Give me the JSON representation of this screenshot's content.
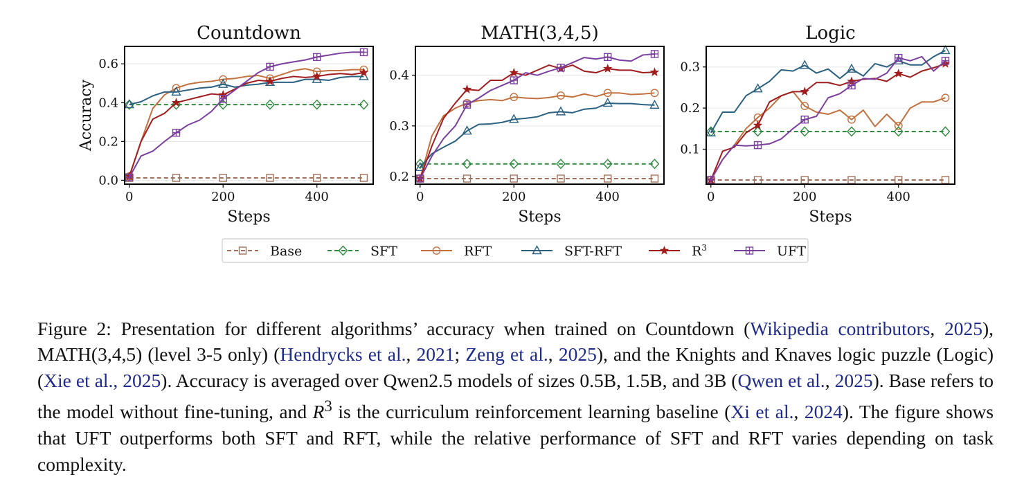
{
  "chart_data": [
    {
      "type": "line",
      "title": "Countdown",
      "xlabel": "Steps",
      "ylabel": "Accuracy",
      "xlim": [
        -10,
        520
      ],
      "ylim": [
        -0.02,
        0.69
      ],
      "xticks": [
        0,
        200,
        400
      ],
      "yticks": [
        0.0,
        0.2,
        0.4,
        0.6
      ],
      "ytick_labels": [
        "0.0",
        "0.2",
        "0.4",
        "0.6"
      ],
      "grid": "horizontal",
      "series": [
        {
          "name": "Base",
          "x": [
            0,
            100,
            200,
            300,
            400,
            500
          ],
          "y": [
            0.012,
            0.012,
            0.012,
            0.012,
            0.012,
            0.012
          ],
          "markers": [
            0,
            100,
            200,
            300,
            400,
            500
          ]
        },
        {
          "name": "SFT",
          "x": [
            0,
            100,
            200,
            300,
            400,
            500
          ],
          "y": [
            0.39,
            0.39,
            0.39,
            0.39,
            0.39,
            0.39
          ],
          "markers": [
            0,
            100,
            200,
            300,
            400,
            500
          ]
        },
        {
          "name": "RFT",
          "x": [
            0,
            25,
            50,
            75,
            100,
            125,
            150,
            175,
            200,
            225,
            250,
            275,
            300,
            325,
            350,
            375,
            400,
            425,
            450,
            475,
            500
          ],
          "y": [
            0.02,
            0.2,
            0.37,
            0.44,
            0.475,
            0.495,
            0.505,
            0.51,
            0.52,
            0.525,
            0.535,
            0.54,
            0.525,
            0.545,
            0.565,
            0.575,
            0.56,
            0.565,
            0.565,
            0.57,
            0.57
          ],
          "markers": [
            0,
            100,
            200,
            300,
            400,
            500
          ]
        },
        {
          "name": "SFT-RFT",
          "x": [
            0,
            25,
            50,
            75,
            100,
            125,
            150,
            175,
            200,
            225,
            250,
            275,
            300,
            325,
            350,
            375,
            400,
            425,
            450,
            475,
            500
          ],
          "y": [
            0.39,
            0.405,
            0.435,
            0.455,
            0.455,
            0.465,
            0.475,
            0.48,
            0.495,
            0.48,
            0.49,
            0.495,
            0.505,
            0.505,
            0.505,
            0.52,
            0.52,
            0.515,
            0.53,
            0.535,
            0.535
          ],
          "markers": [
            0,
            100,
            200,
            300,
            400,
            500
          ]
        },
        {
          "name": "R³",
          "x": [
            0,
            25,
            50,
            75,
            100,
            125,
            150,
            175,
            200,
            225,
            250,
            275,
            300,
            325,
            350,
            375,
            400,
            425,
            450,
            475,
            500
          ],
          "y": [
            0.02,
            0.2,
            0.315,
            0.345,
            0.4,
            0.415,
            0.43,
            0.445,
            0.44,
            0.47,
            0.5,
            0.515,
            0.51,
            0.525,
            0.535,
            0.53,
            0.535,
            0.545,
            0.55,
            0.545,
            0.555
          ],
          "markers": [
            0,
            100,
            200,
            300,
            400,
            500
          ]
        },
        {
          "name": "UFT",
          "x": [
            0,
            25,
            50,
            75,
            100,
            125,
            150,
            175,
            200,
            225,
            250,
            275,
            300,
            325,
            350,
            375,
            400,
            425,
            450,
            475,
            500
          ],
          "y": [
            0.015,
            0.125,
            0.15,
            0.2,
            0.245,
            0.285,
            0.31,
            0.355,
            0.42,
            0.465,
            0.51,
            0.555,
            0.585,
            0.6,
            0.61,
            0.62,
            0.635,
            0.645,
            0.655,
            0.66,
            0.66
          ],
          "markers": [
            0,
            100,
            200,
            300,
            400,
            500
          ]
        }
      ]
    },
    {
      "type": "line",
      "title": "MATH(3,4,5)",
      "xlabel": "Steps",
      "ylabel": "",
      "xlim": [
        -10,
        520
      ],
      "ylim": [
        0.185,
        0.457
      ],
      "xticks": [
        0,
        200,
        400
      ],
      "yticks": [
        0.2,
        0.3,
        0.4
      ],
      "ytick_labels": [
        "0.2",
        "0.3",
        "0.4"
      ],
      "grid": "horizontal",
      "series": [
        {
          "name": "Base",
          "x": [
            0,
            100,
            200,
            300,
            400,
            500
          ],
          "y": [
            0.196,
            0.196,
            0.196,
            0.196,
            0.196,
            0.196
          ],
          "markers": [
            0,
            100,
            200,
            300,
            400,
            500
          ]
        },
        {
          "name": "SFT",
          "x": [
            0,
            100,
            200,
            300,
            400,
            500
          ],
          "y": [
            0.225,
            0.225,
            0.225,
            0.225,
            0.225,
            0.225
          ],
          "markers": [
            0,
            100,
            200,
            300,
            400,
            500
          ]
        },
        {
          "name": "RFT",
          "x": [
            0,
            25,
            50,
            75,
            100,
            125,
            150,
            175,
            200,
            225,
            250,
            275,
            300,
            325,
            350,
            375,
            400,
            425,
            450,
            475,
            500
          ],
          "y": [
            0.196,
            0.28,
            0.32,
            0.335,
            0.345,
            0.35,
            0.352,
            0.35,
            0.357,
            0.355,
            0.354,
            0.356,
            0.36,
            0.357,
            0.363,
            0.358,
            0.365,
            0.365,
            0.362,
            0.363,
            0.365
          ],
          "markers": [
            0,
            100,
            200,
            300,
            400,
            500
          ]
        },
        {
          "name": "SFT-RFT",
          "x": [
            0,
            25,
            50,
            75,
            100,
            125,
            150,
            175,
            200,
            225,
            250,
            275,
            300,
            325,
            350,
            375,
            400,
            425,
            450,
            475,
            500
          ],
          "y": [
            0.218,
            0.245,
            0.258,
            0.27,
            0.29,
            0.303,
            0.304,
            0.307,
            0.313,
            0.315,
            0.318,
            0.326,
            0.328,
            0.326,
            0.333,
            0.335,
            0.345,
            0.344,
            0.344,
            0.342,
            0.341
          ],
          "markers": [
            0,
            100,
            200,
            300,
            400,
            500
          ]
        },
        {
          "name": "R³",
          "x": [
            0,
            25,
            50,
            75,
            100,
            125,
            150,
            175,
            200,
            225,
            250,
            275,
            300,
            325,
            350,
            375,
            400,
            425,
            450,
            475,
            500
          ],
          "y": [
            0.196,
            0.26,
            0.315,
            0.345,
            0.372,
            0.37,
            0.39,
            0.39,
            0.405,
            0.4,
            0.41,
            0.42,
            0.413,
            0.42,
            0.408,
            0.405,
            0.413,
            0.41,
            0.41,
            0.405,
            0.406
          ],
          "markers": [
            0,
            100,
            200,
            300,
            400,
            500
          ]
        },
        {
          "name": "UFT",
          "x": [
            0,
            25,
            50,
            75,
            100,
            125,
            150,
            175,
            200,
            225,
            250,
            275,
            300,
            325,
            350,
            375,
            400,
            425,
            450,
            475,
            500
          ],
          "y": [
            0.196,
            0.24,
            0.275,
            0.3,
            0.342,
            0.355,
            0.37,
            0.38,
            0.39,
            0.405,
            0.4,
            0.408,
            0.415,
            0.425,
            0.435,
            0.432,
            0.436,
            0.43,
            0.428,
            0.44,
            0.442
          ],
          "markers": [
            0,
            100,
            200,
            300,
            400,
            500
          ]
        }
      ]
    },
    {
      "type": "line",
      "title": "Logic",
      "xlabel": "Steps",
      "ylabel": "",
      "xlim": [
        -10,
        520
      ],
      "ylim": [
        0.015,
        0.35
      ],
      "xticks": [
        0,
        200,
        400
      ],
      "yticks": [
        0.1,
        0.2,
        0.3
      ],
      "ytick_labels": [
        "0.1",
        "0.2",
        "0.3"
      ],
      "grid": "horizontal",
      "series": [
        {
          "name": "Base",
          "x": [
            0,
            100,
            200,
            300,
            400,
            500
          ],
          "y": [
            0.025,
            0.025,
            0.025,
            0.025,
            0.025,
            0.025
          ],
          "markers": [
            0,
            100,
            200,
            300,
            400,
            500
          ]
        },
        {
          "name": "SFT",
          "x": [
            0,
            100,
            200,
            300,
            400,
            500
          ],
          "y": [
            0.143,
            0.143,
            0.143,
            0.143,
            0.143,
            0.143
          ],
          "markers": [
            0,
            100,
            200,
            300,
            400,
            500
          ]
        },
        {
          "name": "RFT",
          "x": [
            0,
            25,
            50,
            75,
            100,
            125,
            150,
            175,
            200,
            225,
            250,
            275,
            300,
            325,
            350,
            375,
            400,
            425,
            450,
            475,
            500
          ],
          "y": [
            0.025,
            0.075,
            0.11,
            0.15,
            0.177,
            0.2,
            0.23,
            0.24,
            0.205,
            0.19,
            0.185,
            0.195,
            0.172,
            0.195,
            0.155,
            0.185,
            0.157,
            0.2,
            0.215,
            0.215,
            0.225
          ],
          "markers": [
            0,
            100,
            200,
            300,
            400,
            500
          ]
        },
        {
          "name": "SFT-RFT",
          "x": [
            0,
            25,
            50,
            75,
            100,
            125,
            150,
            175,
            200,
            225,
            250,
            275,
            300,
            325,
            350,
            375,
            400,
            425,
            450,
            475,
            500
          ],
          "y": [
            0.14,
            0.19,
            0.19,
            0.23,
            0.247,
            0.265,
            0.293,
            0.29,
            0.304,
            0.285,
            0.295,
            0.272,
            0.295,
            0.278,
            0.308,
            0.3,
            0.315,
            0.305,
            0.305,
            0.325,
            0.34
          ],
          "markers": [
            0,
            100,
            200,
            300,
            400,
            500
          ]
        },
        {
          "name": "R³",
          "x": [
            0,
            25,
            50,
            75,
            100,
            125,
            150,
            175,
            200,
            225,
            250,
            275,
            300,
            325,
            350,
            375,
            400,
            425,
            450,
            475,
            500
          ],
          "y": [
            0.025,
            0.095,
            0.105,
            0.14,
            0.158,
            0.215,
            0.23,
            0.24,
            0.24,
            0.262,
            0.262,
            0.255,
            0.265,
            0.27,
            0.272,
            0.265,
            0.284,
            0.275,
            0.29,
            0.298,
            0.308
          ],
          "markers": [
            0,
            100,
            200,
            300,
            400,
            500
          ]
        },
        {
          "name": "UFT",
          "x": [
            0,
            25,
            50,
            75,
            100,
            125,
            150,
            175,
            200,
            225,
            250,
            275,
            300,
            325,
            350,
            375,
            400,
            425,
            450,
            475,
            500
          ],
          "y": [
            0.025,
            0.075,
            0.11,
            0.108,
            0.11,
            0.113,
            0.125,
            0.15,
            0.172,
            0.18,
            0.225,
            0.235,
            0.255,
            0.272,
            0.27,
            0.285,
            0.322,
            0.315,
            0.325,
            0.29,
            0.315
          ],
          "markers": [
            0,
            100,
            200,
            300,
            400,
            500
          ]
        }
      ]
    }
  ],
  "legend": {
    "placement": "bottom-center",
    "items": [
      {
        "label": "Base",
        "color": "#a0705a",
        "marker": "square",
        "dash": "dashed"
      },
      {
        "label": "SFT",
        "color": "#2e8b3e",
        "marker": "diamond",
        "dash": "dashed"
      },
      {
        "label": "RFT",
        "color": "#c2703d",
        "marker": "circle",
        "dash": "solid"
      },
      {
        "label": "SFT-RFT",
        "color": "#2a6080",
        "marker": "triangle",
        "dash": "solid"
      },
      {
        "label": "R",
        "sup": "3",
        "color": "#a11d1d",
        "marker": "star",
        "dash": "solid"
      },
      {
        "label": "UFT",
        "color": "#7b3f9e",
        "marker": "plus-square",
        "dash": "solid"
      }
    ]
  },
  "caption": {
    "parts": [
      {
        "t": "Figure 2: Presentation for different algorithms’ accuracy when trained on Countdown ("
      },
      {
        "t": "Wikipedia contributors",
        "c": 1
      },
      {
        "t": ", "
      },
      {
        "t": "2025",
        "c": 1
      },
      {
        "t": "), MATH(3,4,5) (level 3-5 only) ("
      },
      {
        "t": "Hendrycks et al.",
        "c": 1
      },
      {
        "t": ", "
      },
      {
        "t": "2021",
        "c": 1
      },
      {
        "t": "; "
      },
      {
        "t": "Zeng et al.",
        "c": 1
      },
      {
        "t": ", "
      },
      {
        "t": "2025",
        "c": 1
      },
      {
        "t": "), and the Knights and Knaves logic puzzle (Logic) ("
      },
      {
        "t": "Xie et al., 2025",
        "c": 1
      },
      {
        "t": "). Accuracy is averaged over Qwen2.5 models of sizes 0.5B, 1.5B, and 3B ("
      },
      {
        "t": "Qwen et al.",
        "c": 1
      },
      {
        "t": ", "
      },
      {
        "t": "2025",
        "c": 1
      },
      {
        "t": "). Base refers to the model without fine-tuning, and "
      },
      {
        "t": "R",
        "i": 1
      },
      {
        "t": "3",
        "sup": 1
      },
      {
        "t": " is the curriculum reinforcement learning baseline ("
      },
      {
        "t": "Xi et al.",
        "c": 1
      },
      {
        "t": ", "
      },
      {
        "t": "2024",
        "c": 1
      },
      {
        "t": "). The figure shows that UFT outperforms both SFT and RFT, while the relative performance of SFT and RFT varies depending on task complexity."
      }
    ]
  }
}
